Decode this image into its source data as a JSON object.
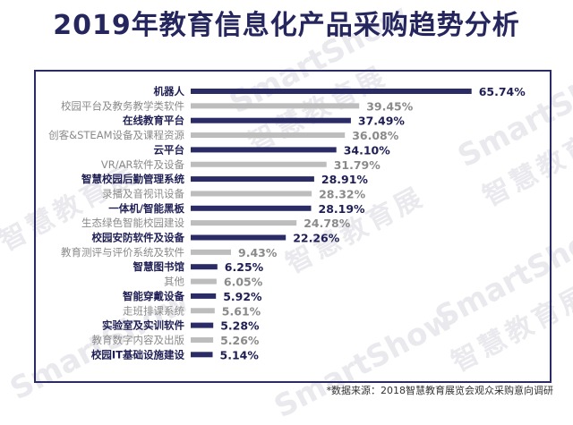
{
  "title": "2019年教育信息化产品采购趋势分析",
  "watermark": {
    "en": "SmartShow",
    "cn": "智慧教育展"
  },
  "source": "*数据来源：2018智慧教育展览会观众采购意向调研",
  "colors": {
    "title": "#26265e",
    "bar_primary": "#2b2b66",
    "bar_secondary": "#bdbdbd",
    "label_primary": "#1f1f55",
    "label_secondary": "#8a8a8a",
    "frame": "#2b2b66"
  },
  "chart_data": {
    "type": "bar",
    "orientation": "horizontal",
    "title": "2019年教育信息化产品采购趋势分析",
    "xlabel": "",
    "ylabel": "",
    "unit": "%",
    "xlim": [
      0,
      70
    ],
    "grid": false,
    "categories": [
      "机器人",
      "校园平台及教务教学类软件",
      "在线教育平台",
      "创客&STEAM设备及课程资源",
      "云平台",
      "VR/AR软件及设备",
      "智慧校园后勤管理系统",
      "录播及音视讯设备",
      "一体机/智能黑板",
      "生态绿色智能校园建设",
      "校园安防软件及设备",
      "教育测评与评价系统及软件",
      "智慧图书馆",
      "其他",
      "智能穿戴设备",
      "走班排课系统",
      "实验室及实训软件",
      "教育数字内容及出版",
      "校园IT基础设施建设"
    ],
    "values": [
      65.74,
      39.45,
      37.49,
      36.08,
      34.1,
      31.79,
      28.91,
      28.32,
      28.19,
      24.78,
      22.26,
      9.43,
      6.25,
      6.05,
      5.92,
      5.61,
      5.28,
      5.26,
      5.14
    ],
    "value_labels": [
      "65.74%",
      "39.45%",
      "37.49%",
      "36.08%",
      "34.10%",
      "31.79%",
      "28.91%",
      "28.32%",
      "28.19%",
      "24.78%",
      "22.26%",
      "9.43%",
      "6.25%",
      "6.05%",
      "5.92%",
      "5.61%",
      "5.28%",
      "5.26%",
      "5.14%"
    ],
    "highlighted": [
      true,
      false,
      true,
      false,
      true,
      false,
      true,
      false,
      true,
      false,
      true,
      false,
      true,
      false,
      true,
      false,
      true,
      false,
      true
    ]
  }
}
